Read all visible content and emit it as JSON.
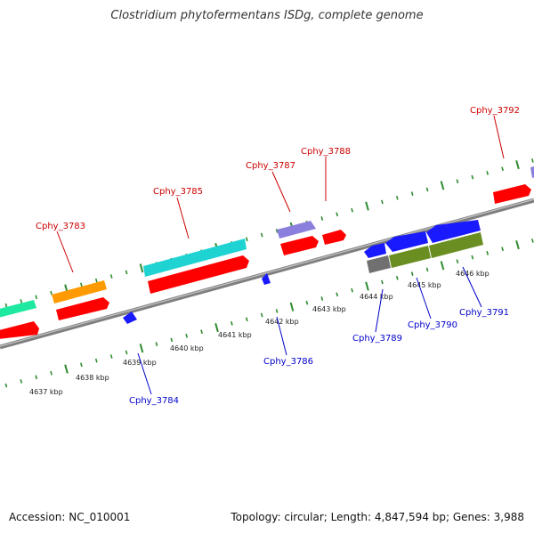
{
  "title": "Clostridium phytofermentans ISDg, complete genome",
  "footer": {
    "accession": "Accession: NC_010001",
    "summary": "Topology: circular; Length: 4,847,594 bp; Genes: 3,988"
  },
  "colors": {
    "backbone": "#8c8c8c",
    "tick": "#2e8b2e",
    "forward_label": "#cc0000",
    "reverse_label": "#0000cc",
    "gene_red": "#ff0000",
    "gene_orange": "#ff9a00",
    "gene_cyan": "#1fd3d3",
    "gene_purple": "#8a7fdc",
    "gene_blue": "#1a1aff",
    "gene_green": "#6b8e23",
    "gene_gray": "#707070",
    "gene_mint": "#1de9a0"
  },
  "kbp_labels": [
    "4637 kbp",
    "4638 kbp",
    "4639 kbp",
    "4640 kbp",
    "4641 kbp",
    "4642 kbp",
    "4643 kbp",
    "4644 kbp",
    "4645 kbp",
    "4646 kbp"
  ],
  "forward_labels": [
    "Cphy_3783",
    "Cphy_3785",
    "Cphy_3787",
    "Cphy_3788",
    "Cphy_3792"
  ],
  "reverse_labels": [
    "Cphy_3784",
    "Cphy_3786",
    "Cphy_3789",
    "Cphy_3790",
    "Cphy_3791"
  ]
}
